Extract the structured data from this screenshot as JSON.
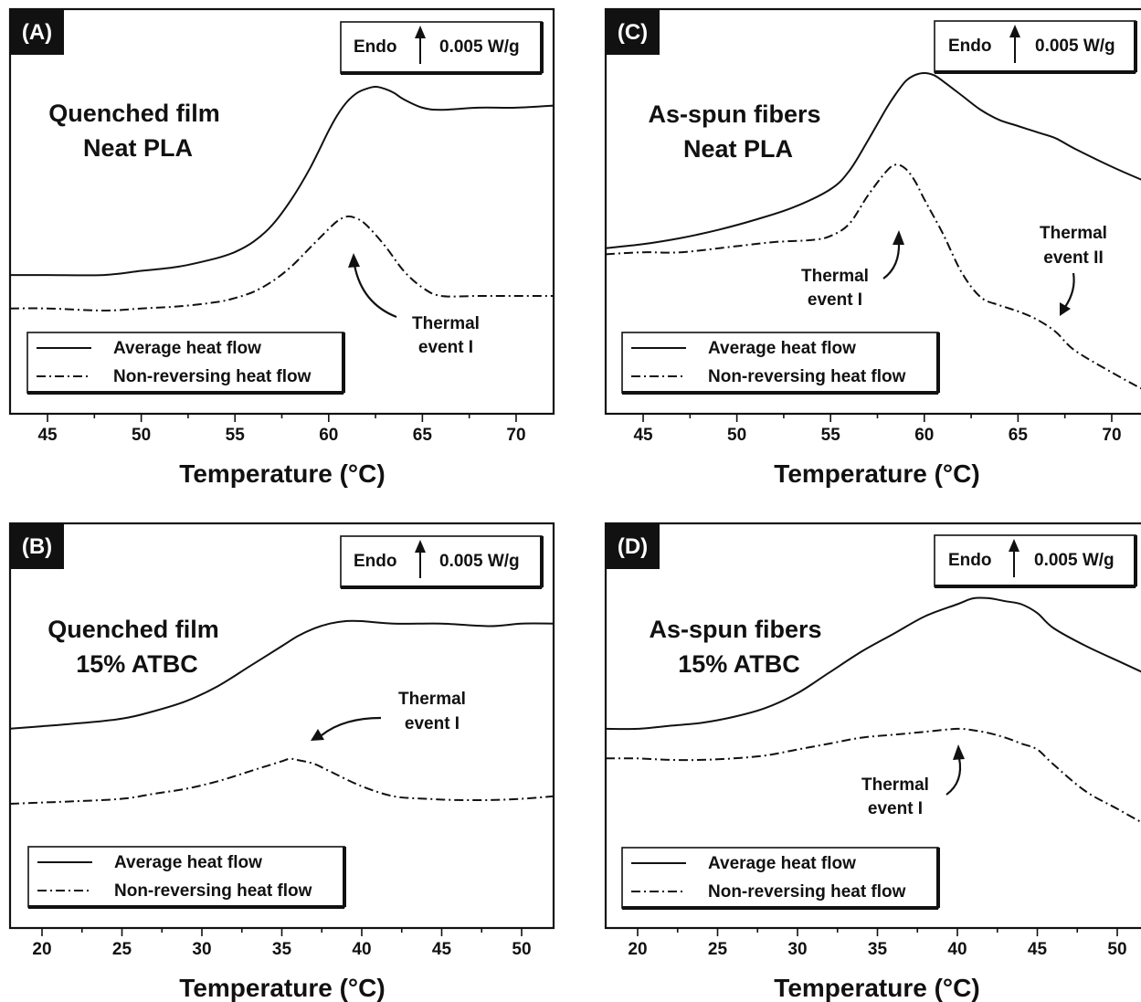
{
  "chart_data": [
    {
      "panel": "(A)",
      "type": "line",
      "title_lines": [
        "Quenched film",
        "Neat PLA"
      ],
      "xlabel": "Temperature (°C)",
      "ylabel": "",
      "xlim": [
        43,
        72
      ],
      "xticks": [
        45,
        50,
        55,
        60,
        65,
        70
      ],
      "yaxis_ticks": false,
      "scale_bar": {
        "label_left": "Endo",
        "label_right": "0.005 W/g"
      },
      "legend_position": "bottom-left",
      "series": [
        {
          "name": "Average heat flow",
          "style": "solid",
          "x": [
            43,
            45,
            48,
            50,
            52,
            54,
            55,
            56,
            57,
            58,
            59,
            60,
            60.5,
            61,
            61.5,
            62,
            62.5,
            63,
            63.5,
            64,
            65,
            66,
            68,
            70,
            72
          ],
          "y": [
            0.1,
            0.1,
            0.1,
            0.12,
            0.14,
            0.18,
            0.21,
            0.26,
            0.34,
            0.46,
            0.61,
            0.79,
            0.87,
            0.93,
            0.97,
            0.99,
            1.0,
            0.99,
            0.97,
            0.94,
            0.9,
            0.89,
            0.9,
            0.9,
            0.91
          ]
        },
        {
          "name": "Non-reversing heat flow",
          "style": "dashdot",
          "x": [
            43,
            45,
            48,
            50,
            52,
            54,
            55,
            56,
            57,
            58,
            59,
            60,
            60.5,
            61,
            61.5,
            62,
            63,
            64,
            65,
            66,
            68,
            70,
            72
          ],
          "y": [
            -0.06,
            -0.06,
            -0.07,
            -0.06,
            -0.05,
            -0.03,
            -0.01,
            0.02,
            0.07,
            0.14,
            0.23,
            0.32,
            0.36,
            0.38,
            0.37,
            0.34,
            0.24,
            0.12,
            0.04,
            0.0,
            0.0,
            0.0,
            0.0
          ]
        }
      ],
      "annotations": [
        {
          "text_lines": [
            "Thermal",
            "event I"
          ],
          "x": 61.2
        }
      ]
    },
    {
      "panel": "(B)",
      "type": "line",
      "title_lines": [
        "Quenched film",
        "15% ATBC"
      ],
      "xlabel": "Temperature (°C)",
      "ylabel": "",
      "xlim": [
        18,
        52
      ],
      "xticks": [
        20,
        25,
        30,
        35,
        40,
        45,
        50
      ],
      "yaxis_ticks": false,
      "scale_bar": {
        "label_left": "Endo",
        "label_right": "0.005 W/g"
      },
      "legend_position": "bottom-left",
      "series": [
        {
          "name": "Average heat flow",
          "style": "solid",
          "x": [
            18,
            20,
            22,
            25,
            27,
            29,
            31,
            33,
            35,
            36,
            37,
            38,
            39,
            40,
            42,
            45,
            48,
            50,
            52
          ],
          "y": [
            0.54,
            0.55,
            0.56,
            0.58,
            0.61,
            0.65,
            0.71,
            0.79,
            0.87,
            0.91,
            0.94,
            0.96,
            0.97,
            0.97,
            0.96,
            0.96,
            0.95,
            0.96,
            0.96
          ]
        },
        {
          "name": "Non-reversing heat flow",
          "style": "dashdot",
          "x": [
            18,
            20,
            22,
            25,
            27,
            29,
            31,
            33,
            34,
            35,
            35.5,
            36,
            37,
            38,
            40,
            42,
            44,
            46,
            48,
            50,
            52
          ],
          "y": [
            0.24,
            0.245,
            0.25,
            0.26,
            0.28,
            0.3,
            0.33,
            0.37,
            0.39,
            0.41,
            0.42,
            0.415,
            0.4,
            0.37,
            0.31,
            0.27,
            0.26,
            0.255,
            0.255,
            0.26,
            0.27
          ]
        }
      ],
      "annotations": [
        {
          "text_lines": [
            "Thermal",
            "event I"
          ],
          "x": 36.5
        }
      ]
    },
    {
      "panel": "(C)",
      "type": "line",
      "title_lines": [
        "As-spun fibers",
        "Neat PLA"
      ],
      "xlabel": "Temperature (°C)",
      "ylabel": "",
      "xlim": [
        43,
        72
      ],
      "xticks": [
        45,
        50,
        55,
        60,
        65,
        70
      ],
      "yaxis_ticks": false,
      "scale_bar": {
        "label_left": "Endo",
        "label_right": "0.005 W/g"
      },
      "legend_position": "bottom-left",
      "series": [
        {
          "name": "Average heat flow",
          "style": "solid",
          "x": [
            43,
            45,
            47,
            49,
            51,
            53,
            55,
            56,
            57,
            58,
            58.5,
            59,
            59.5,
            60,
            60.5,
            61,
            62,
            63,
            64,
            65,
            66,
            67,
            68,
            70,
            72
          ],
          "y": [
            0.14,
            0.16,
            0.19,
            0.23,
            0.28,
            0.34,
            0.43,
            0.52,
            0.67,
            0.83,
            0.9,
            0.96,
            0.99,
            1.0,
            0.99,
            0.96,
            0.89,
            0.82,
            0.77,
            0.74,
            0.71,
            0.68,
            0.63,
            0.54,
            0.46
          ]
        },
        {
          "name": "Non-reversing heat flow",
          "style": "dashdot",
          "x": [
            43,
            45,
            47,
            50,
            52,
            54,
            55,
            56,
            57,
            58,
            58.5,
            59,
            59.5,
            60,
            61,
            62,
            63,
            64,
            65,
            66,
            67,
            68,
            70,
            72
          ],
          "y": [
            0.11,
            0.12,
            0.12,
            0.15,
            0.17,
            0.18,
            0.2,
            0.26,
            0.4,
            0.52,
            0.55,
            0.53,
            0.47,
            0.38,
            0.21,
            0.02,
            -0.1,
            -0.14,
            -0.17,
            -0.21,
            -0.27,
            -0.36,
            -0.47,
            -0.57
          ]
        }
      ],
      "annotations": [
        {
          "text_lines": [
            "Thermal",
            "event I"
          ],
          "x": 58.6
        },
        {
          "text_lines": [
            "Thermal",
            "event II"
          ],
          "x": 66.5
        }
      ]
    },
    {
      "panel": "(D)",
      "type": "line",
      "title_lines": [
        "As-spun fibers",
        "15% ATBC"
      ],
      "xlabel": "Temperature (°C)",
      "ylabel": "",
      "xlim": [
        18,
        52
      ],
      "xticks": [
        20,
        25,
        30,
        35,
        40,
        45,
        50
      ],
      "yaxis_ticks": false,
      "scale_bar": {
        "label_left": "Endo",
        "label_right": "0.005 W/g"
      },
      "legend_position": "bottom-left",
      "series": [
        {
          "name": "Average heat flow",
          "style": "solid",
          "x": [
            18,
            20,
            22,
            24,
            26,
            28,
            30,
            32,
            34,
            36,
            38,
            40,
            41,
            42,
            43,
            44,
            45,
            46,
            48,
            50,
            52
          ],
          "y": [
            0.56,
            0.56,
            0.57,
            0.58,
            0.6,
            0.63,
            0.68,
            0.75,
            0.82,
            0.88,
            0.94,
            0.98,
            1.0,
            1.0,
            0.99,
            0.98,
            0.95,
            0.9,
            0.84,
            0.79,
            0.74
          ]
        },
        {
          "name": "Non-reversing heat flow",
          "style": "dashdot",
          "x": [
            18,
            20,
            22,
            24,
            26,
            28,
            30,
            32,
            34,
            36,
            38,
            40,
            41,
            42,
            43,
            44,
            45,
            46,
            48,
            50,
            52
          ],
          "y": [
            0.46,
            0.46,
            0.455,
            0.455,
            0.46,
            0.47,
            0.49,
            0.51,
            0.53,
            0.54,
            0.55,
            0.56,
            0.555,
            0.545,
            0.53,
            0.51,
            0.49,
            0.44,
            0.35,
            0.29,
            0.23
          ]
        }
      ],
      "annotations": [
        {
          "text_lines": [
            "Thermal",
            "event I"
          ],
          "x": 40.2
        }
      ]
    }
  ]
}
